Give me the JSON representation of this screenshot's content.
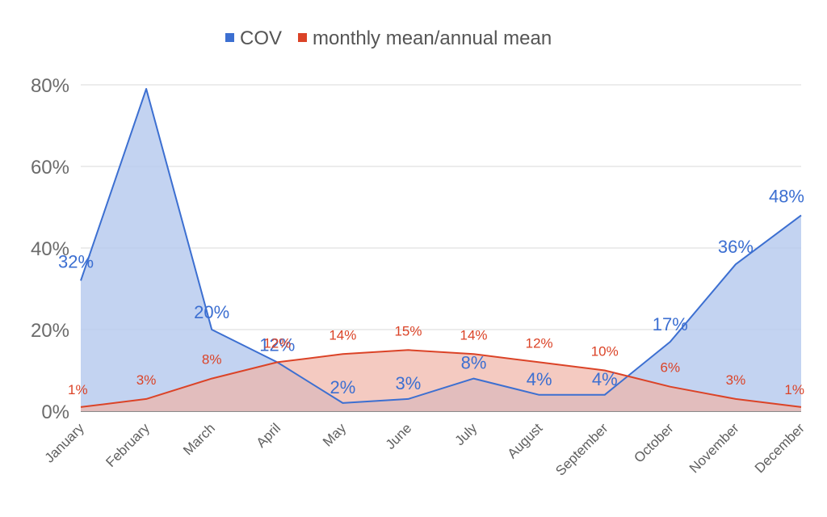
{
  "chart_data": {
    "type": "area",
    "title": "",
    "xlabel": "",
    "ylabel": "",
    "categories": [
      "January",
      "February",
      "March",
      "April",
      "May",
      "June",
      "July",
      "August",
      "September",
      "October",
      "November",
      "December"
    ],
    "ylim": [
      0,
      80
    ],
    "yticks": [
      "0%",
      "20%",
      "40%",
      "60%",
      "80%"
    ],
    "grid": true,
    "legend_position": "top",
    "series": [
      {
        "name": "COV",
        "color": "#3c6fd1",
        "fill": "#b8cbef",
        "values": [
          32,
          79,
          20,
          12,
          2,
          3,
          8,
          4,
          4,
          17,
          36,
          48
        ],
        "labels": [
          "32%",
          "",
          "20%",
          "12%",
          "2%",
          "3%",
          "8%",
          "4%",
          "4%",
          "17%",
          "36%",
          "48%"
        ]
      },
      {
        "name": "monthly mean/annual mean",
        "color": "#db4327",
        "fill": "#efb3a6",
        "values": [
          1,
          3,
          8,
          12,
          14,
          15,
          14,
          12,
          10,
          6,
          3,
          1
        ],
        "labels": [
          "1%",
          "3%",
          "8%",
          "12%",
          "14%",
          "15%",
          "14%",
          "12%",
          "10%",
          "6%",
          "3%",
          "1%"
        ]
      }
    ]
  }
}
